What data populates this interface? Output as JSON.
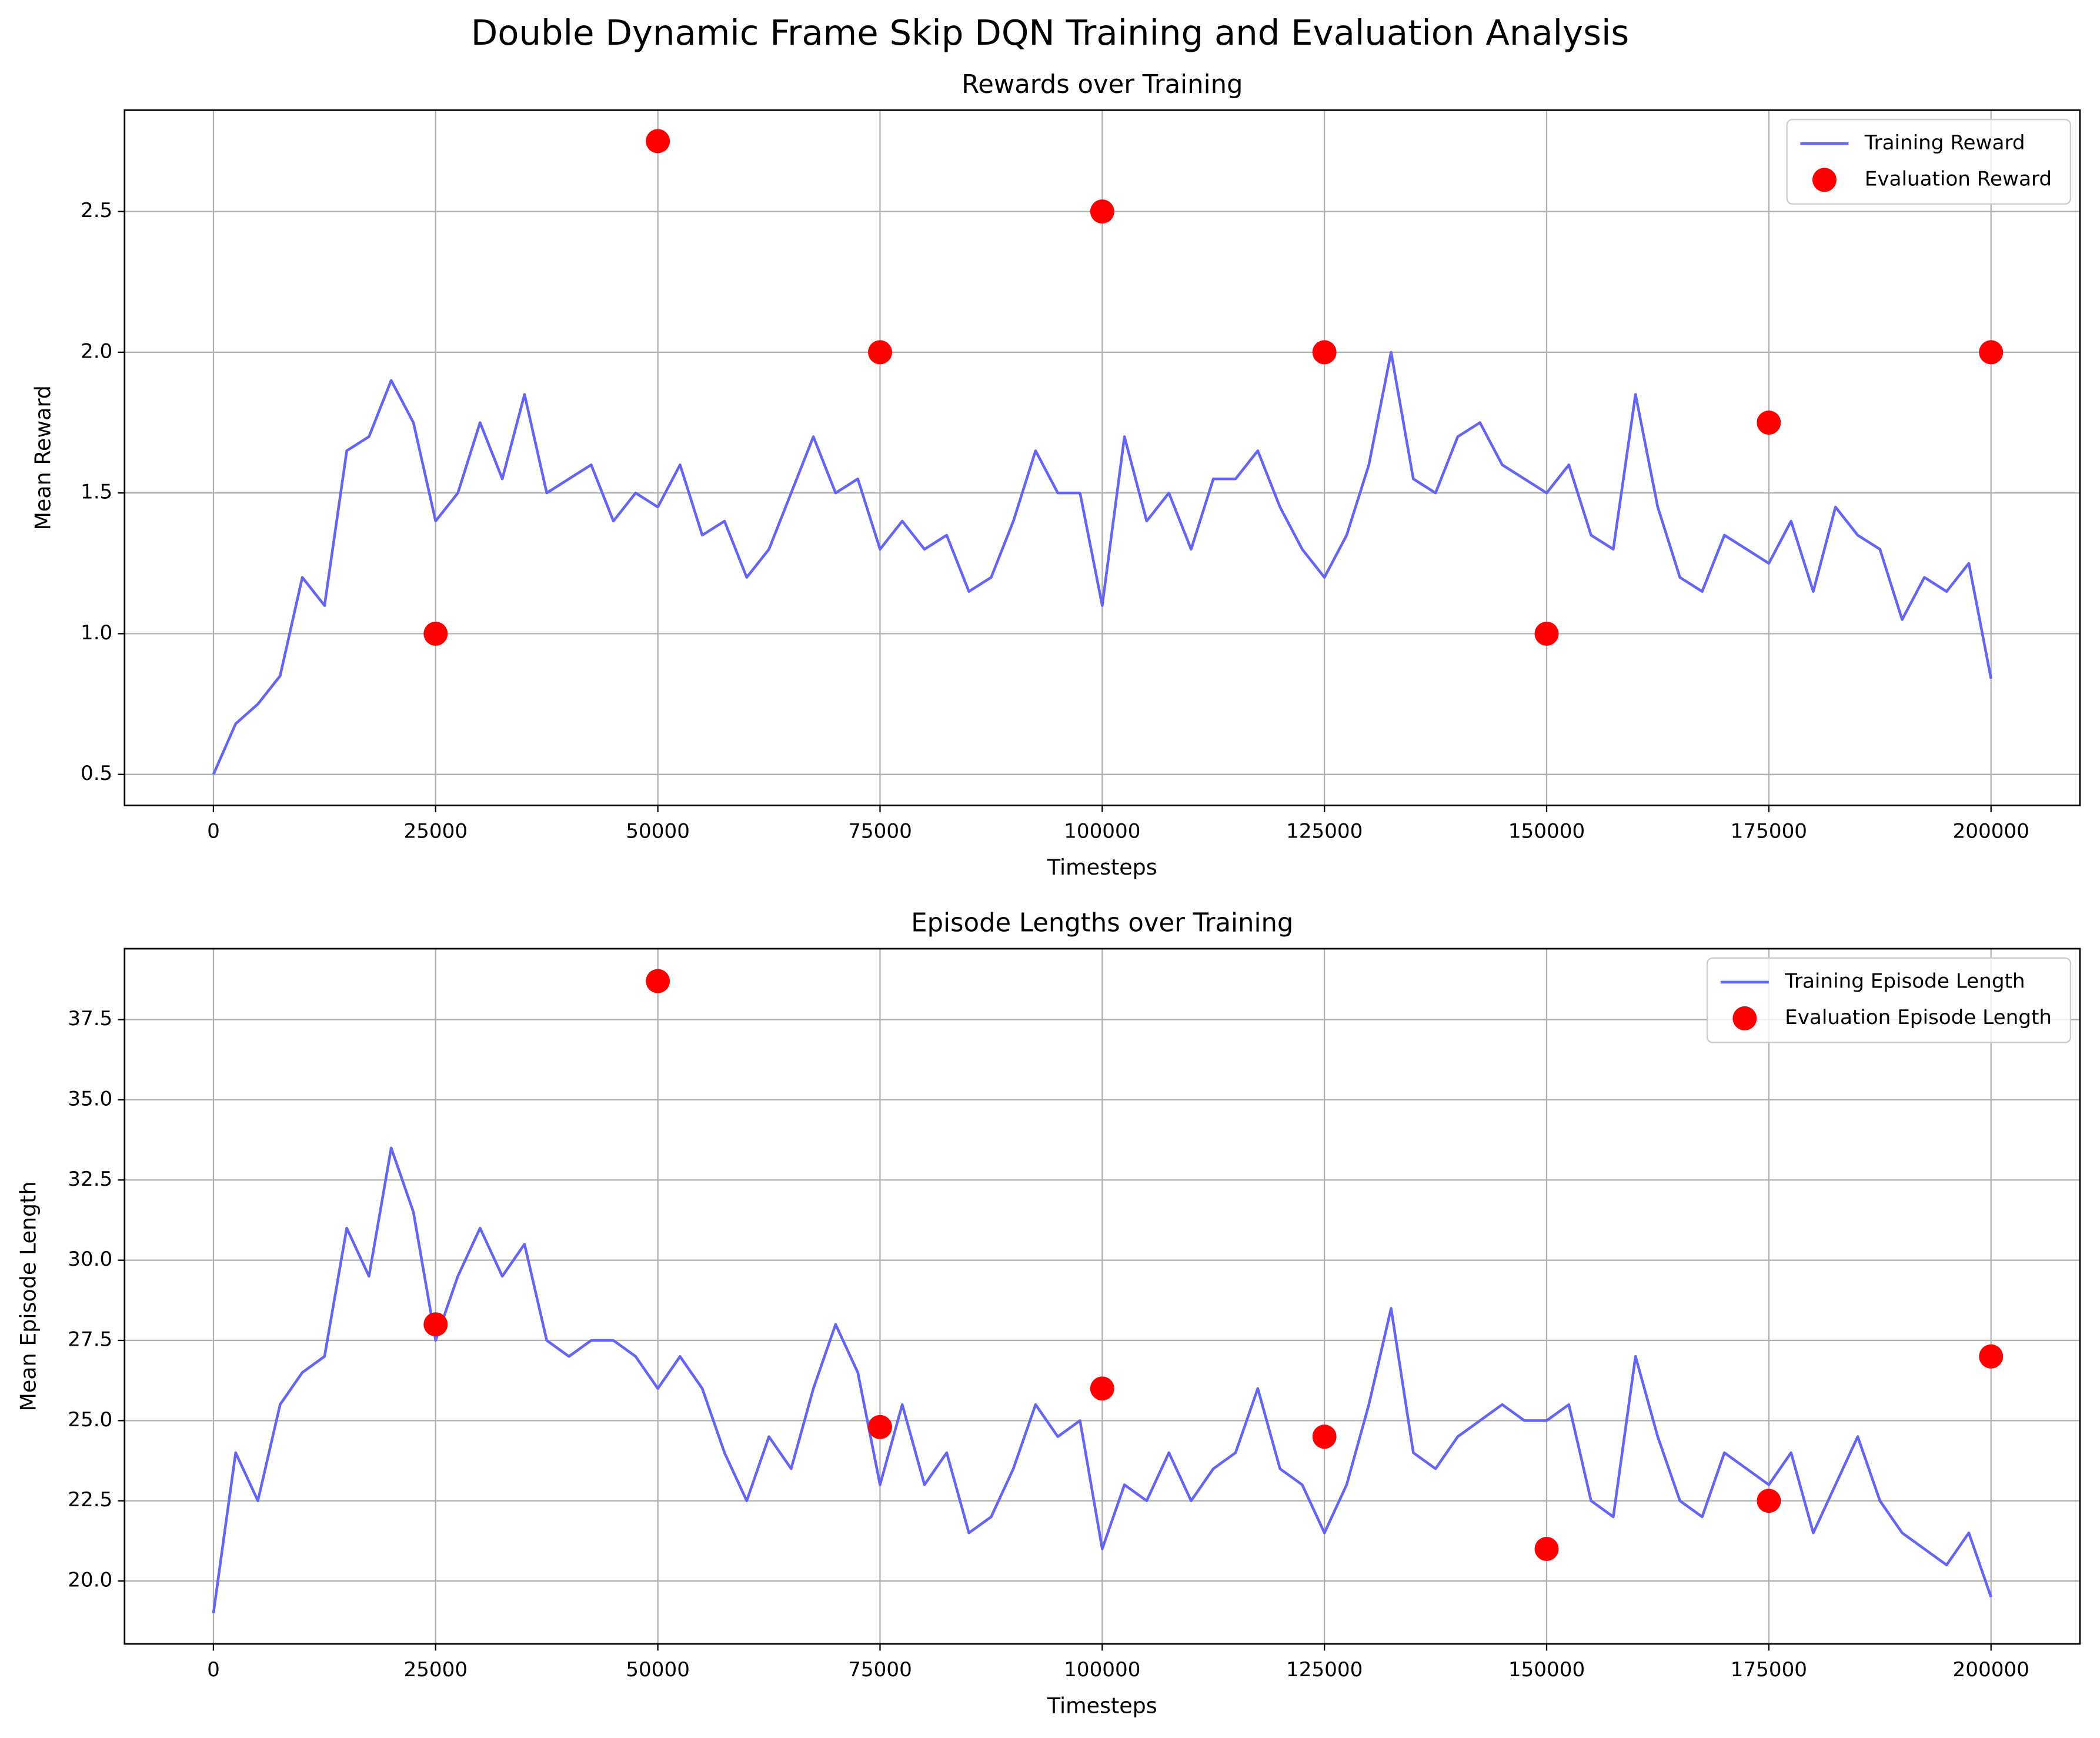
{
  "title": "Double Dynamic Frame Skip DQN Training and Evaluation Analysis",
  "chart_data": [
    {
      "type": "line",
      "title": "Rewards over Training",
      "xlabel": "Timesteps",
      "ylabel": "Mean Reward",
      "xlim": [
        -10000,
        210000
      ],
      "xticks": [
        0,
        25000,
        50000,
        75000,
        100000,
        125000,
        150000,
        175000,
        200000
      ],
      "ylim": [
        0.39,
        2.86
      ],
      "yticks": [
        0.5,
        {
          "value": 1,
          "label": "1.0"
        },
        1.5,
        {
          "value": 2,
          "label": "2.0"
        },
        2.5
      ],
      "grid": true,
      "legend": "upper right",
      "series": [
        {
          "name": "Training Reward",
          "kind": "line",
          "color": "#6464f5",
          "x": [
            0,
            2500,
            5000,
            7500,
            10000,
            12500,
            15000,
            17500,
            20000,
            22500,
            25000,
            27500,
            30000,
            32500,
            35000,
            37500,
            40000,
            42500,
            45000,
            47500,
            50000,
            52500,
            55000,
            57500,
            60000,
            62500,
            65000,
            67500,
            70000,
            72500,
            75000,
            77500,
            80000,
            82500,
            85000,
            87500,
            90000,
            92500,
            95000,
            97500,
            100000,
            102500,
            105000,
            107500,
            110000,
            112500,
            115000,
            117500,
            120000,
            122500,
            125000,
            127500,
            130000,
            132500,
            135000,
            137500,
            140000,
            142500,
            145000,
            147500,
            150000,
            152500,
            155000,
            157500,
            160000,
            162500,
            165000,
            167500,
            170000,
            172500,
            175000,
            177500,
            180000,
            182500,
            185000,
            187500,
            190000,
            192500,
            195000,
            197500,
            200000
          ],
          "values": [
            0.5,
            0.68,
            0.75,
            0.85,
            1.2,
            1.1,
            1.65,
            1.7,
            1.9,
            1.75,
            1.4,
            1.5,
            1.75,
            1.55,
            1.85,
            1.5,
            1.55,
            1.6,
            1.4,
            1.5,
            1.45,
            1.6,
            1.35,
            1.4,
            1.2,
            1.3,
            1.5,
            1.7,
            1.5,
            1.55,
            1.3,
            1.4,
            1.3,
            1.35,
            1.15,
            1.2,
            1.4,
            1.65,
            1.5,
            1.5,
            1.1,
            1.7,
            1.4,
            1.5,
            1.3,
            1.55,
            1.55,
            1.65,
            1.45,
            1.3,
            1.2,
            1.35,
            1.6,
            2.0,
            1.55,
            1.5,
            1.7,
            1.75,
            1.6,
            1.55,
            1.5,
            1.6,
            1.35,
            1.3,
            1.85,
            1.45,
            1.2,
            1.15,
            1.35,
            1.3,
            1.25,
            1.4,
            1.15,
            1.45,
            1.35,
            1.3,
            1.05,
            1.2,
            1.15,
            1.25,
            0.84
          ]
        },
        {
          "name": "Evaluation Reward",
          "kind": "scatter",
          "color": "#ff0000",
          "x": [
            25000,
            50000,
            75000,
            100000,
            125000,
            150000,
            175000,
            200000
          ],
          "values": [
            1,
            2.75,
            2,
            2.5,
            2,
            1,
            1.75,
            2
          ]
        }
      ]
    },
    {
      "type": "line",
      "title": "Episode Lengths over Training",
      "xlabel": "Timesteps",
      "ylabel": "Mean Episode Length",
      "xlim": [
        -10000,
        210000
      ],
      "xticks": [
        0,
        25000,
        50000,
        75000,
        100000,
        125000,
        150000,
        175000,
        200000
      ],
      "ylim": [
        18.04,
        39.71
      ],
      "yticks": [
        {
          "value": 20,
          "label": "20.0"
        },
        22.5,
        {
          "value": 25,
          "label": "25.0"
        },
        27.5,
        {
          "value": 30,
          "label": "30.0"
        },
        32.5,
        {
          "value": 35,
          "label": "35.0"
        },
        37.5
      ],
      "grid": true,
      "legend": "upper right",
      "series": [
        {
          "name": "Training Episode Length",
          "kind": "line",
          "color": "#6464f5",
          "x": [
            0,
            2500,
            5000,
            7500,
            10000,
            12500,
            15000,
            17500,
            20000,
            22500,
            25000,
            27500,
            30000,
            32500,
            35000,
            37500,
            40000,
            42500,
            45000,
            47500,
            50000,
            52500,
            55000,
            57500,
            60000,
            62500,
            65000,
            67500,
            70000,
            72500,
            75000,
            77500,
            80000,
            82500,
            85000,
            87500,
            90000,
            92500,
            95000,
            97500,
            100000,
            102500,
            105000,
            107500,
            110000,
            112500,
            115000,
            117500,
            120000,
            122500,
            125000,
            127500,
            130000,
            132500,
            135000,
            137500,
            140000,
            142500,
            145000,
            147500,
            150000,
            152500,
            155000,
            157500,
            160000,
            162500,
            165000,
            167500,
            170000,
            172500,
            175000,
            177500,
            180000,
            182500,
            185000,
            187500,
            190000,
            192500,
            195000,
            197500,
            200000
          ],
          "values": [
            19,
            24,
            22.5,
            25.5,
            26.5,
            27,
            31,
            29.5,
            33.5,
            31.5,
            27.5,
            29.5,
            31,
            29.5,
            30.5,
            27.5,
            27,
            27.5,
            27.5,
            27,
            26,
            27,
            26,
            24,
            22.5,
            24.5,
            23.5,
            26,
            28,
            26.5,
            23,
            25.5,
            23,
            24,
            21.5,
            22,
            23.5,
            25.5,
            24.5,
            25,
            21,
            23,
            22.5,
            24,
            22.5,
            23.5,
            24,
            26,
            23.5,
            23,
            21.5,
            23,
            25.5,
            28.5,
            24,
            23.5,
            24.5,
            25,
            25.5,
            25,
            25,
            25.5,
            22.5,
            22,
            27,
            24.5,
            22.5,
            22,
            24,
            23.5,
            23,
            24,
            21.5,
            23,
            24.5,
            22.5,
            21.5,
            21,
            20.5,
            21.5,
            19.5
          ]
        },
        {
          "name": "Evaluation Episode Length",
          "kind": "scatter",
          "color": "#ff0000",
          "x": [
            25000,
            50000,
            75000,
            100000,
            125000,
            150000,
            175000,
            200000
          ],
          "values": [
            28,
            38.7,
            24.8,
            26,
            24.5,
            21,
            22.5,
            27
          ]
        }
      ]
    }
  ]
}
